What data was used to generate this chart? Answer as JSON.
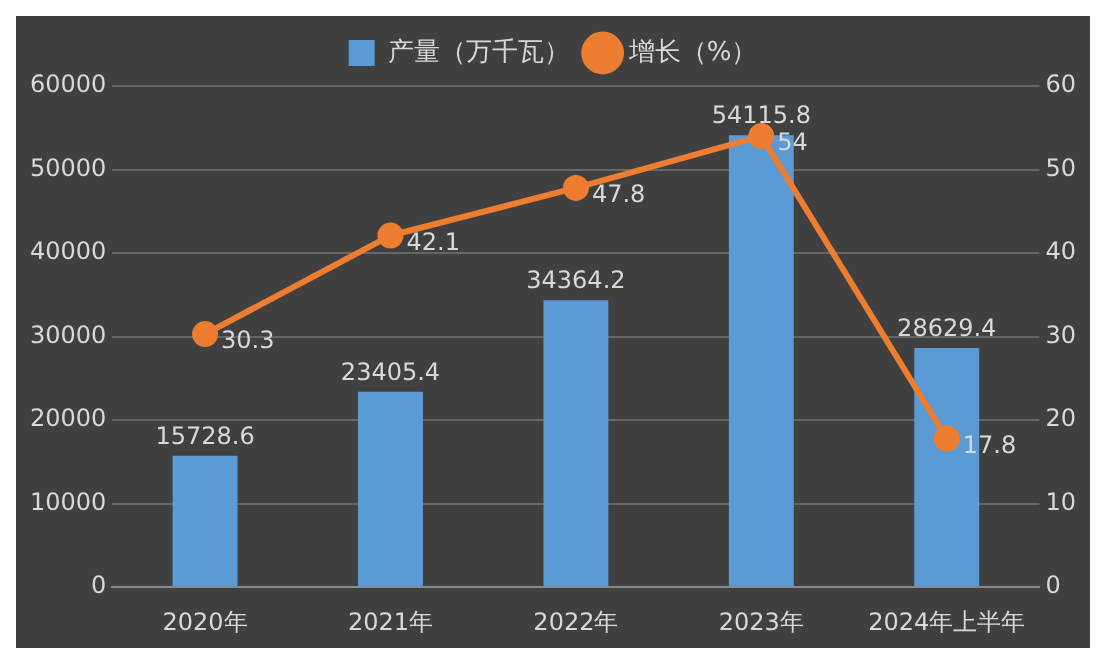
{
  "chart_data": {
    "type": "bar",
    "categories": [
      "2020年",
      "2021年",
      "2022年",
      "2023年",
      "2024年上半年"
    ],
    "series": [
      {
        "name": "产量（万千瓦）",
        "color": "#5b9bd5",
        "values": [
          15728.6,
          23405.4,
          34364.2,
          54115.8,
          28629.4
        ]
      },
      {
        "name": "增长（%）",
        "type": "line",
        "axis": "y2",
        "color": "#ed7d31",
        "values": [
          30.3,
          42.1,
          47.8,
          54,
          17.8
        ]
      }
    ],
    "ylim": [
      0,
      60000
    ],
    "yticks": [
      0,
      10000,
      20000,
      30000,
      40000,
      50000,
      60000
    ],
    "y2lim": [
      0,
      60
    ],
    "y2ticks": [
      0,
      10,
      20,
      30,
      40,
      50,
      60
    ],
    "grid": "y",
    "legend": "top",
    "data_labels": true,
    "marker": "circle",
    "line_style": "solid"
  }
}
